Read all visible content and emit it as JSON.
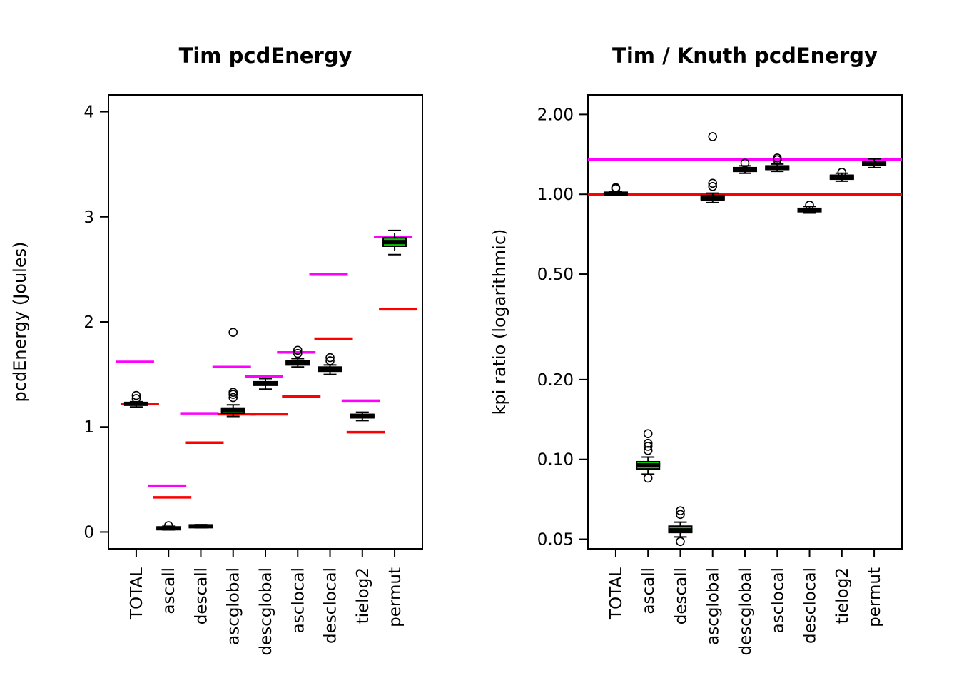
{
  "page": {
    "background": "#ffffff"
  },
  "colors": {
    "magenta_ref": "#FF00FF",
    "red_ref": "#FF0000",
    "box_fill": "#00CC00",
    "box_stroke": "#000000",
    "axis": "#000000"
  },
  "chart_data": [
    {
      "type": "boxplot",
      "title": "Tim pcdEnergy",
      "ylabel": "pcdEnergy (Joules)",
      "xlabel": "",
      "yscale": "linear",
      "ylim": [
        -0.16,
        4.16
      ],
      "yticks": [
        {
          "value": 0,
          "label": "0"
        },
        {
          "value": 1,
          "label": "1"
        },
        {
          "value": 2,
          "label": "2"
        },
        {
          "value": 3,
          "label": "3"
        },
        {
          "value": 4,
          "label": "4"
        }
      ],
      "categories": [
        "TOTAL",
        "ascall",
        "descall",
        "ascglobal",
        "descglobal",
        "asclocal",
        "desclocal",
        "tielog2",
        "permut"
      ],
      "ref_line_mode": "per-category",
      "boxes": [
        {
          "category": "TOTAL",
          "median": 1.22,
          "q1": 1.21,
          "q3": 1.23,
          "whisker_low": 1.19,
          "whisker_high": 1.24,
          "outliers": [
            1.27,
            1.3
          ],
          "magenta_ref": 1.62,
          "red_ref": 1.22
        },
        {
          "category": "ascall",
          "median": 0.035,
          "q1": 0.03,
          "q3": 0.045,
          "whisker_low": 0.02,
          "whisker_high": 0.055,
          "outliers": [
            0.06
          ],
          "magenta_ref": 0.44,
          "red_ref": 0.33
        },
        {
          "category": "descall",
          "median": 0.055,
          "q1": 0.05,
          "q3": 0.06,
          "whisker_low": 0.04,
          "whisker_high": 0.07,
          "outliers": [],
          "magenta_ref": 1.13,
          "red_ref": 0.85
        },
        {
          "category": "ascglobal",
          "median": 1.16,
          "q1": 1.13,
          "q3": 1.18,
          "whisker_low": 1.1,
          "whisker_high": 1.21,
          "outliers": [
            1.28,
            1.31,
            1.33,
            1.9
          ],
          "magenta_ref": 1.57,
          "red_ref": 1.12
        },
        {
          "category": "descglobal",
          "median": 1.41,
          "q1": 1.4,
          "q3": 1.43,
          "whisker_low": 1.36,
          "whisker_high": 1.46,
          "outliers": [],
          "magenta_ref": 1.48,
          "red_ref": 1.12
        },
        {
          "category": "asclocal",
          "median": 1.61,
          "q1": 1.59,
          "q3": 1.63,
          "whisker_low": 1.57,
          "whisker_high": 1.65,
          "outliers": [
            1.7,
            1.73
          ],
          "magenta_ref": 1.71,
          "red_ref": 1.29
        },
        {
          "category": "desclocal",
          "median": 1.55,
          "q1": 1.53,
          "q3": 1.57,
          "whisker_low": 1.5,
          "whisker_high": 1.59,
          "outliers": [
            1.63,
            1.66
          ],
          "magenta_ref": 2.45,
          "red_ref": 1.84
        },
        {
          "category": "tielog2",
          "median": 1.1,
          "q1": 1.09,
          "q3": 1.12,
          "whisker_low": 1.06,
          "whisker_high": 1.14,
          "outliers": [],
          "magenta_ref": 1.25,
          "red_ref": 0.95
        },
        {
          "category": "permut",
          "median": 2.76,
          "q1": 2.72,
          "q3": 2.8,
          "whisker_low": 2.64,
          "whisker_high": 2.87,
          "outliers": [],
          "magenta_ref": 2.81,
          "red_ref": 2.12
        }
      ]
    },
    {
      "type": "boxplot",
      "title": "Tim / Knuth pcdEnergy",
      "ylabel": "kpi ratio (logarithmic)",
      "xlabel": "",
      "yscale": "log",
      "ylim": [
        0.046,
        2.37
      ],
      "yticks": [
        {
          "value": 0.05,
          "label": "0.05"
        },
        {
          "value": 0.1,
          "label": "0.10"
        },
        {
          "value": 0.2,
          "label": "0.20"
        },
        {
          "value": 0.5,
          "label": "0.50"
        },
        {
          "value": 1.0,
          "label": "1.00"
        },
        {
          "value": 2.0,
          "label": "2.00"
        }
      ],
      "categories": [
        "TOTAL",
        "ascall",
        "descall",
        "ascglobal",
        "descglobal",
        "asclocal",
        "desclocal",
        "tielog2",
        "permut"
      ],
      "ref_line_mode": "full-width",
      "ref_lines": {
        "magenta_ref": 1.35,
        "red_ref": 1.0
      },
      "boxes": [
        {
          "category": "TOTAL",
          "median": 1.005,
          "q1": 1.0,
          "q3": 1.012,
          "whisker_low": 0.99,
          "whisker_high": 1.02,
          "outliers": [
            1.05,
            1.06
          ]
        },
        {
          "category": "ascall",
          "median": 0.095,
          "q1": 0.092,
          "q3": 0.098,
          "whisker_low": 0.088,
          "whisker_high": 0.102,
          "outliers": [
            0.108,
            0.112,
            0.115,
            0.125,
            0.085
          ]
        },
        {
          "category": "descall",
          "median": 0.054,
          "q1": 0.053,
          "q3": 0.056,
          "whisker_low": 0.051,
          "whisker_high": 0.058,
          "outliers": [
            0.062,
            0.064,
            0.049
          ]
        },
        {
          "category": "ascglobal",
          "median": 0.97,
          "q1": 0.95,
          "q3": 0.99,
          "whisker_low": 0.93,
          "whisker_high": 1.01,
          "outliers": [
            1.07,
            1.1,
            1.65
          ]
        },
        {
          "category": "descglobal",
          "median": 1.24,
          "q1": 1.22,
          "q3": 1.26,
          "whisker_low": 1.2,
          "whisker_high": 1.28,
          "outliers": [
            1.31
          ]
        },
        {
          "category": "asclocal",
          "median": 1.26,
          "q1": 1.24,
          "q3": 1.28,
          "whisker_low": 1.22,
          "whisker_high": 1.3,
          "outliers": [
            1.35,
            1.37
          ]
        },
        {
          "category": "desclocal",
          "median": 0.87,
          "q1": 0.86,
          "q3": 0.885,
          "whisker_low": 0.85,
          "whisker_high": 0.9,
          "outliers": [
            0.91
          ]
        },
        {
          "category": "tielog2",
          "median": 1.16,
          "q1": 1.14,
          "q3": 1.18,
          "whisker_low": 1.12,
          "whisker_high": 1.2,
          "outliers": [
            1.21
          ]
        },
        {
          "category": "permut",
          "median": 1.31,
          "q1": 1.29,
          "q3": 1.33,
          "whisker_low": 1.26,
          "whisker_high": 1.36,
          "outliers": []
        }
      ]
    }
  ]
}
